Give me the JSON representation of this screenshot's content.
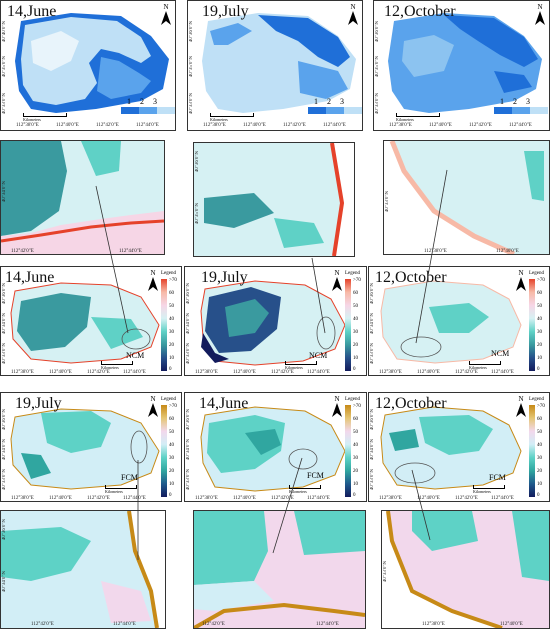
{
  "row1": [
    {
      "title": "14,June",
      "north": "N",
      "lat": [
        "40°40'0\"N",
        "40°35'0\"N",
        "40°33'0\"N"
      ],
      "lon": [
        "112°38'0\"E",
        "112°40'0\"E",
        "112°42'0\"E",
        "112°44'0\"E"
      ],
      "scale": "Kilometers"
    },
    {
      "title": "19,July",
      "north": "N",
      "lat": [
        "40°36'0\"N",
        "40°35'0\"N",
        "40°33'0\"N"
      ],
      "lon": [
        "112°38'0\"E",
        "112°40'0\"E",
        "112°42'0\"E",
        "112°44'0\"E"
      ],
      "scale": "Kilometers"
    },
    {
      "title": "12,October",
      "north": "N",
      "lat": [
        "40°36'0\"N",
        "40°35'0\"N",
        "40°33'0\"N"
      ],
      "lon": [
        "112°38'0\"E",
        "112°40'0\"E",
        "112°42'0\"E",
        "112°44'0\"E"
      ],
      "scale": "Kilometers"
    }
  ],
  "class_legend": {
    "labels": [
      "1",
      "2",
      "3"
    ],
    "colors": [
      "#1f6fd8",
      "#5aa3ec",
      "#bfe0f6"
    ]
  },
  "zoom_row2": [
    {
      "lat": "40°34'0\"N",
      "lon": [
        "112°42'0\"E",
        "112°44'0\"E"
      ]
    },
    {
      "lat": [
        "40°36'0\"N",
        "40°35'0\"N"
      ],
      "lon": [
        "112°43'0\"E",
        "112°44'0\"E"
      ]
    },
    {
      "lat": "40°33'0\"N",
      "lon": [
        "112°38'0\"E",
        "112°40'0\"E"
      ]
    }
  ],
  "row3": [
    {
      "title": "14,June",
      "tag": "NCM",
      "north": "N",
      "lat": [
        "40°36'0\"N",
        "40°34'0\"N",
        "40°33'0\"N"
      ],
      "lon": [
        "112°38'0\"E",
        "112°40'0\"E",
        "112°42'0\"E",
        "112°44'0\"E"
      ],
      "scale": "Kilometers"
    },
    {
      "title": "19,July",
      "tag": "NCM",
      "north": "N",
      "lat": [
        "40°36'0\"N",
        "40°34'0\"N",
        "40°33'0\"N"
      ],
      "lon": [
        "112°38'0\"E",
        "112°40'0\"E",
        "112°42'0\"E",
        "112°44'0\"E"
      ],
      "scale": "Kilometers"
    },
    {
      "title": "12,October",
      "tag": "NCM",
      "north": "N",
      "lat": [
        "40°36'0\"N",
        "40°34'0\"N",
        "40°33'0\"N"
      ],
      "lon": [
        "112°38'0\"E",
        "112°40'0\"E",
        "112°42'0\"E",
        "112°44'0\"E"
      ],
      "scale": "Kilometers"
    }
  ],
  "row4": [
    {
      "title": "19,July",
      "tag": "FCM",
      "north": "N",
      "lat": [
        "40°36'0\"N",
        "40°34'0\"N",
        "40°33'0\"N"
      ],
      "lon": [
        "112°38'0\"E",
        "112°40'0\"E",
        "112°42'0\"E",
        "112°44'0\"E"
      ],
      "scale": "Kilometers"
    },
    {
      "title": "14,June",
      "tag": "FCM",
      "north": "N",
      "lat": [
        "40°36'0\"N",
        "40°34'0\"N",
        "40°33'0\"N"
      ],
      "lon": [
        "112°38'0\"E",
        "112°40'0\"E",
        "112°42'0\"E",
        "112°44'0\"E"
      ],
      "scale": "Kilometers"
    },
    {
      "title": "12,October",
      "tag": "FCM",
      "north": "N",
      "lat": [
        "40°36'0\"N",
        "40°34'0\"N",
        "40°33'0\"N"
      ],
      "lon": [
        "112°38'0\"E",
        "112°40'0\"E",
        "112°42'0\"E",
        "112°44'0\"E"
      ],
      "scale": "Kilometers"
    }
  ],
  "zoom_row5": [
    {
      "lat": [
        "40°36'0\"N",
        "40°34'0\"N"
      ],
      "lon": [
        "112°42'0\"E",
        "112°44'0\"E"
      ]
    },
    {
      "lat": "",
      "lon": [
        "112°42'0\"E",
        "112°44'0\"E"
      ]
    },
    {
      "lat": "40°33'0\"N",
      "lon": [
        "112°38'0\"E",
        "112°40'0\"E"
      ]
    }
  ],
  "colorbar_ncm": {
    "title": "Legend",
    "ticks": [
      ">70",
      "60",
      "50",
      "40",
      "30",
      "20",
      "10",
      "0"
    ]
  },
  "colorbar_fcm": {
    "title": "Legend",
    "ticks": [
      ">70",
      "60",
      "50",
      "40",
      "30",
      "20",
      "10",
      "0"
    ]
  },
  "colors": {
    "ncm_ramp": [
      "#e5422a",
      "#f7b9a6",
      "#f6d6e6",
      "#d6f1f3",
      "#5fd1c6",
      "#3a9a9f",
      "#27508a",
      "#121b5c"
    ],
    "fcm_ramp": [
      "#c78a17",
      "#e5c675",
      "#f2d8ec",
      "#d2eef6",
      "#5ed2c6",
      "#30a6a0",
      "#1f5a8c",
      "#121b5c"
    ]
  }
}
